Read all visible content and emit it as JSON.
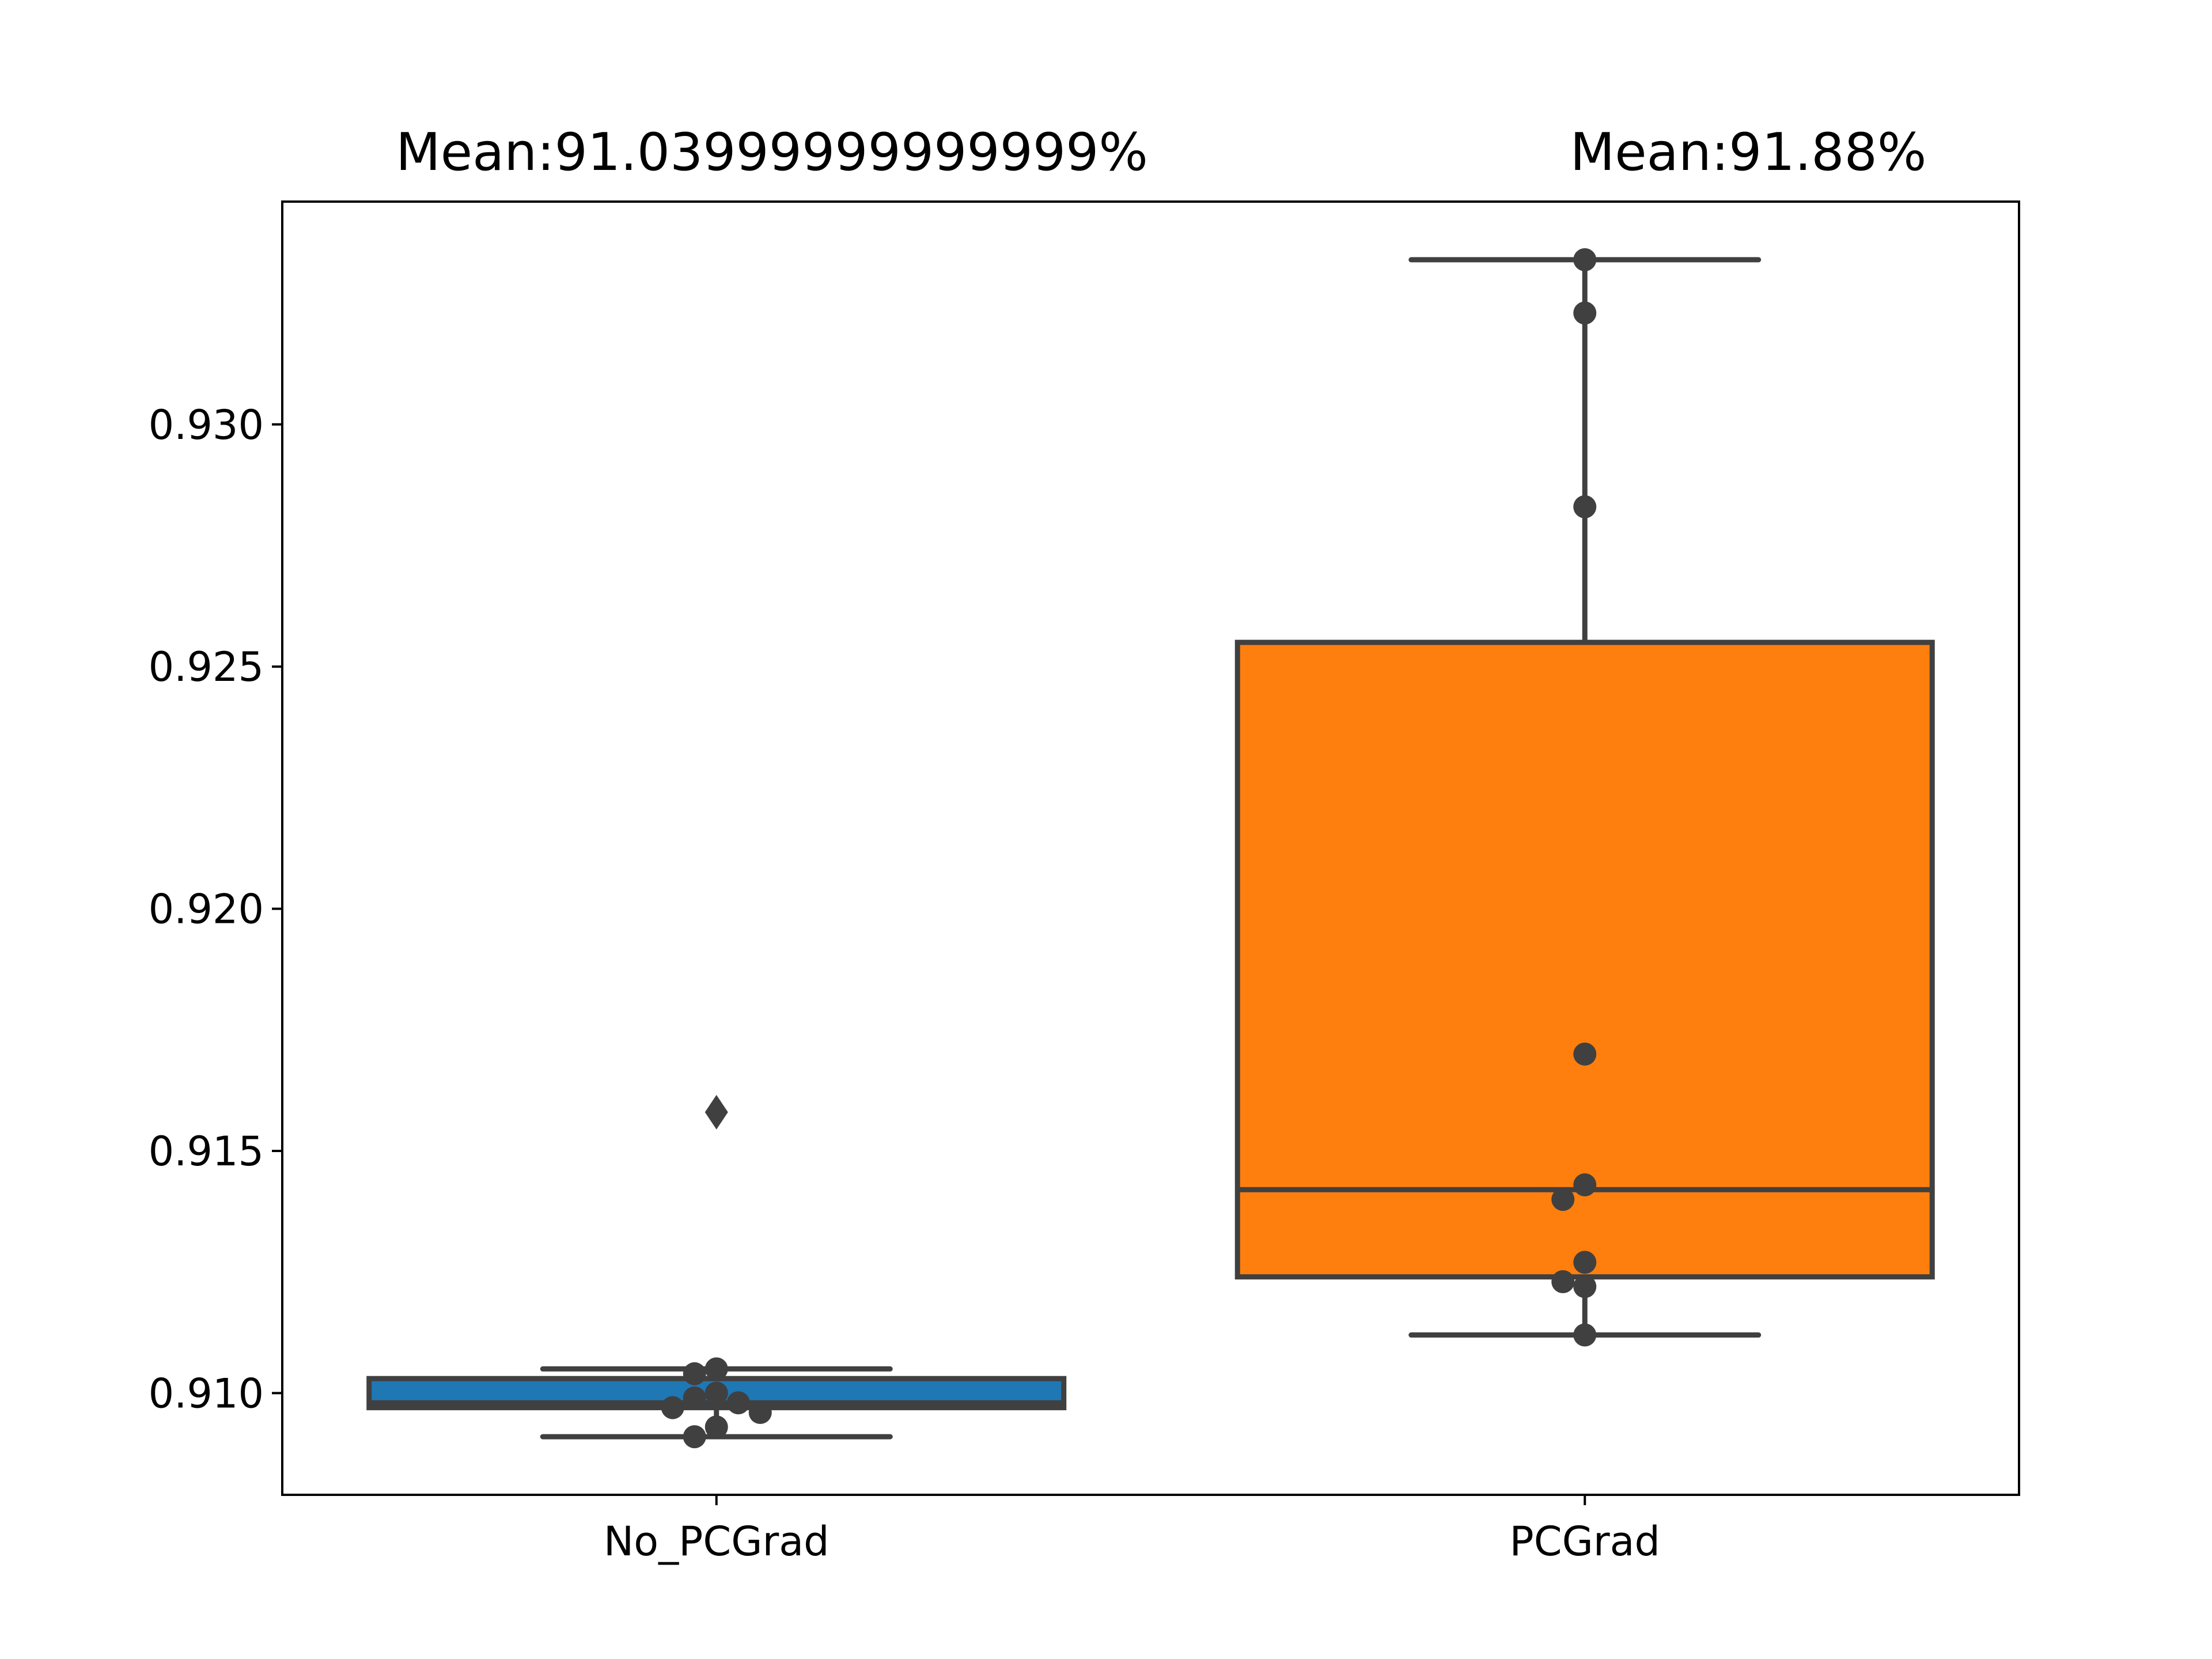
{
  "chart_data": {
    "type": "box",
    "title": "",
    "xlabel": "",
    "ylabel": "",
    "categories": [
      "No_PCGrad",
      "PCGrad"
    ],
    "ylim": [
      0.9079,
      0.9346
    ],
    "yticks": [
      0.91,
      0.915,
      0.92,
      0.925,
      0.93
    ],
    "ytick_labels": [
      "0.910",
      "0.915",
      "0.920",
      "0.925",
      "0.930"
    ],
    "annotations": [
      "Mean:91.03999999999999%",
      "Mean:91.88%"
    ],
    "grid": false,
    "box_edge_color": "#404040",
    "colors": [
      "#1f77b4",
      "#ff7f0e"
    ],
    "boxes": [
      {
        "category": "No_PCGrad",
        "q1": 0.9097,
        "median": 0.9098,
        "q3": 0.9103,
        "whisker_low": 0.9091,
        "whisker_high": 0.9105,
        "outliers": [
          0.9158
        ],
        "points": [
          0.9105,
          0.9104,
          0.91,
          0.9099,
          0.9098,
          0.9097,
          0.9096,
          0.9093,
          0.9091
        ]
      },
      {
        "category": "PCGrad",
        "q1": 0.9124,
        "median": 0.9142,
        "q3": 0.9255,
        "whisker_low": 0.9112,
        "whisker_high": 0.9334,
        "outliers": [],
        "points": [
          0.9334,
          0.9323,
          0.9283,
          0.917,
          0.9143,
          0.914,
          0.9127,
          0.9123,
          0.9122,
          0.9112
        ]
      }
    ]
  }
}
